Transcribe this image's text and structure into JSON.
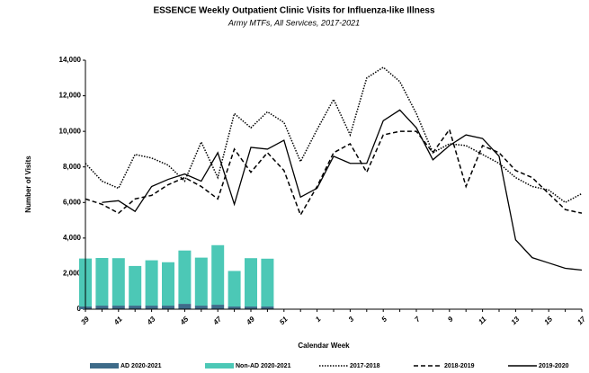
{
  "chart_data": {
    "type": "bar-line",
    "title": "ESSENCE Weekly Outpatient Clinic Visits for Influenza-like Illness",
    "subtitle": "Army MTFs, All Services, 2017-2021",
    "x_label": "Calendar Week",
    "y_label": "Number of Visits",
    "categories": [
      "39",
      null,
      "41",
      null,
      "43",
      null,
      "45",
      null,
      "47",
      null,
      "49",
      null,
      "51",
      null,
      "1",
      null,
      "3",
      null,
      "5",
      null,
      "7",
      null,
      "9",
      null,
      "11",
      null,
      "13",
      null,
      "15",
      null,
      "17"
    ],
    "ylim": [
      0,
      14000
    ],
    "yticks": [
      0,
      {
        "value": 2000,
        "label": "2,000"
      },
      {
        "value": 4000,
        "label": "4,000"
      },
      {
        "value": 6000,
        "label": "6,000"
      },
      {
        "value": 8000,
        "label": "8,000"
      },
      {
        "value": 10000,
        "label": "10,000"
      },
      {
        "value": 12000,
        "label": "12,000"
      },
      {
        "value": 14000,
        "label": "14,000"
      }
    ],
    "grid": false,
    "stacked": true,
    "legend": "bottom",
    "series": [
      {
        "name": "AD 2020-2021",
        "type": "bar",
        "color": "#3e6b89",
        "values": [
          150,
          200,
          200,
          200,
          200,
          200,
          300,
          200,
          250,
          150,
          150,
          150,
          null,
          null,
          null,
          null,
          null,
          null,
          null,
          null,
          null,
          null,
          null,
          null,
          null,
          null,
          null,
          null,
          null,
          null,
          null
        ]
      },
      {
        "name": "Non-AD 2020-2021",
        "type": "bar",
        "color": "#4cc8b6",
        "values": [
          2700,
          2680,
          2670,
          2230,
          2550,
          2440,
          3000,
          2700,
          3350,
          2000,
          2720,
          2690,
          null,
          null,
          null,
          null,
          null,
          null,
          null,
          null,
          null,
          null,
          null,
          null,
          null,
          null,
          null,
          null,
          null,
          null,
          null
        ]
      },
      {
        "name": "2017-2018",
        "type": "line",
        "color": "#000000",
        "dash": "dotted",
        "values": [
          8200,
          7200,
          6800,
          8700,
          8500,
          8100,
          7200,
          9400,
          7400,
          11000,
          10200,
          11100,
          10500,
          8300,
          10100,
          11800,
          9800,
          13000,
          13600,
          12800,
          11000,
          8800,
          9300,
          9200,
          8700,
          8200,
          7400,
          6900,
          6700,
          6000,
          6500
        ]
      },
      {
        "name": "2018-2019",
        "type": "line",
        "color": "#000000",
        "dash": "dashed",
        "values": [
          6200,
          5900,
          5400,
          6200,
          6400,
          7000,
          7400,
          6900,
          6200,
          9000,
          7700,
          8800,
          7800,
          5300,
          6900,
          8800,
          9300,
          7700,
          9800,
          10000,
          10000,
          8800,
          10100,
          6900,
          9200,
          8800,
          7800,
          7400,
          6500,
          5600,
          5400
        ]
      },
      {
        "name": "2019-2020",
        "type": "line",
        "color": "#000000",
        "dash": "solid",
        "values": [
          null,
          6000,
          6100,
          5500,
          6900,
          7300,
          7600,
          7200,
          8800,
          5900,
          9100,
          9000,
          9500,
          6300,
          6800,
          8600,
          8200,
          8200,
          10600,
          11200,
          10200,
          8400,
          9200,
          9800,
          9600,
          8600,
          3900,
          2900,
          2600,
          2300,
          2200
        ]
      }
    ]
  }
}
